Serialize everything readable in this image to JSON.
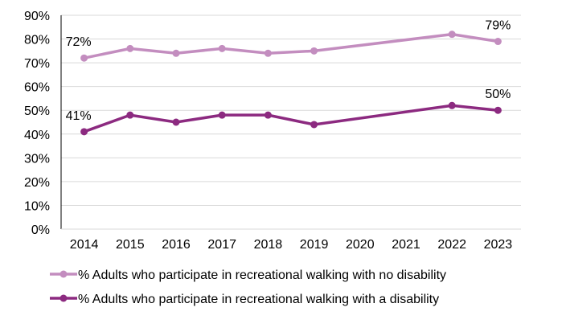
{
  "chart_data": {
    "type": "line",
    "title": "",
    "xlabel": "",
    "ylabel": "",
    "categories": [
      "2014",
      "2015",
      "2016",
      "2017",
      "2018",
      "2019",
      "2020",
      "2021",
      "2022",
      "2023"
    ],
    "ylim": [
      0,
      90
    ],
    "yticks": [
      "0%",
      "10%",
      "20%",
      "30%",
      "40%",
      "50%",
      "60%",
      "70%",
      "80%",
      "90%"
    ],
    "grid": true,
    "legend_position": "bottom",
    "series": [
      {
        "name": "% Adults who participate in recreational walking with no disability",
        "color": "#c38dbf",
        "values": [
          72,
          76,
          74,
          76,
          74,
          75,
          null,
          null,
          82,
          79
        ],
        "data_labels": {
          "0": "72%",
          "9": "79%"
        }
      },
      {
        "name": "% Adults who participate in recreational walking with a disability",
        "color": "#8c2a80",
        "values": [
          41,
          48,
          45,
          48,
          48,
          44,
          null,
          null,
          52,
          50
        ],
        "data_labels": {
          "0": "41%",
          "9": "50%"
        }
      }
    ]
  }
}
